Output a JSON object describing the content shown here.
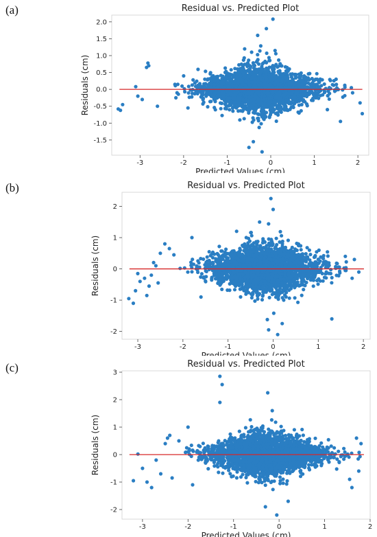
{
  "colors": {
    "points": "#2a7ec3",
    "zero_line": "#d62728",
    "axes": "#444444"
  },
  "panels": [
    {
      "letter": "(a)"
    },
    {
      "letter": "(b)"
    },
    {
      "letter": "(c)"
    }
  ],
  "chart_data": [
    {
      "type": "scatter",
      "title": "Residual vs. Predicted Plot",
      "xlabel": "Predicted Values (cm)",
      "ylabel": "Residuals (cm)",
      "xlim": [
        -3.65,
        2.25
      ],
      "ylim": [
        -1.95,
        2.2
      ],
      "xticks": [
        -3,
        -2,
        -1,
        0,
        1,
        2
      ],
      "yticks": [
        -1.5,
        -1.0,
        -0.5,
        0.0,
        0.5,
        1.0,
        1.5,
        2.0
      ],
      "ytick_labels": [
        "-1.5",
        "-1.0",
        "-0.5",
        "0.0",
        "0.5",
        "1.0",
        "1.5",
        "2.0"
      ],
      "reference_line_y": 0,
      "grid": false,
      "cloud": {
        "x_center": -0.25,
        "x_spread": 0.65,
        "y_spread": 0.36,
        "x_min": -2.2,
        "x_max": 1.9
      },
      "points": [
        [
          -3.5,
          -0.58
        ],
        [
          -3.45,
          -0.62
        ],
        [
          -3.4,
          -0.45
        ],
        [
          -3.1,
          0.08
        ],
        [
          -3.05,
          -0.2
        ],
        [
          -2.95,
          -0.3
        ],
        [
          -2.85,
          0.65
        ],
        [
          -2.82,
          0.78
        ],
        [
          -2.8,
          0.7
        ],
        [
          -2.6,
          -0.5
        ],
        [
          -2.2,
          0.15
        ],
        [
          -2.15,
          -0.1
        ],
        [
          -0.5,
          -1.72
        ],
        [
          -0.3,
          1.6
        ],
        [
          -0.1,
          1.8
        ],
        [
          0.05,
          2.08
        ],
        [
          0.1,
          1.15
        ],
        [
          -0.6,
          1.2
        ],
        [
          -0.2,
          -1.85
        ],
        [
          -0.4,
          -1.55
        ],
        [
          1.6,
          -0.95
        ],
        [
          1.7,
          0.12
        ],
        [
          1.85,
          0.05
        ],
        [
          2.05,
          -0.4
        ],
        [
          2.1,
          -0.72
        ],
        [
          1.3,
          -0.6
        ],
        [
          1.5,
          0.3
        ],
        [
          -1.9,
          -0.55
        ],
        [
          -2.0,
          0.4
        ]
      ]
    },
    {
      "type": "scatter",
      "title": "Residual vs. Predicted Plot",
      "xlabel": "Predicted Values (cm)",
      "ylabel": "Residuals (cm)",
      "xlim": [
        -3.35,
        2.15
      ],
      "ylim": [
        -2.25,
        2.45
      ],
      "xticks": [
        -3,
        -2,
        -1,
        0,
        1,
        2
      ],
      "yticks": [
        -2,
        -1,
        0,
        1,
        2
      ],
      "ytick_labels": [
        "-2",
        "-1",
        "0",
        "1",
        "2"
      ],
      "reference_line_y": 0,
      "grid": false,
      "cloud": {
        "x_center": -0.2,
        "x_spread": 0.6,
        "y_spread": 0.42,
        "x_min": -2.1,
        "x_max": 1.9
      },
      "points": [
        [
          -3.2,
          -0.95
        ],
        [
          -3.1,
          -1.1
        ],
        [
          -3.05,
          -0.7
        ],
        [
          -2.95,
          -0.4
        ],
        [
          -2.85,
          -0.3
        ],
        [
          -2.8,
          -0.85
        ],
        [
          -2.7,
          -0.2
        ],
        [
          -2.6,
          0.1
        ],
        [
          -2.5,
          0.5
        ],
        [
          -2.4,
          0.8
        ],
        [
          -2.3,
          0.65
        ],
        [
          -2.2,
          0.45
        ],
        [
          -2.75,
          -0.55
        ],
        [
          -2.65,
          0.2
        ],
        [
          -2.55,
          -0.45
        ],
        [
          -3.0,
          -0.15
        ],
        [
          -0.05,
          2.25
        ],
        [
          0.0,
          1.9
        ],
        [
          -0.3,
          1.5
        ],
        [
          0.1,
          -2.1
        ],
        [
          -0.1,
          -1.95
        ],
        [
          0.2,
          -1.75
        ],
        [
          1.3,
          -1.6
        ],
        [
          1.6,
          0.4
        ],
        [
          1.8,
          0.3
        ],
        [
          1.9,
          -0.1
        ],
        [
          1.75,
          -0.3
        ],
        [
          -1.8,
          1.0
        ],
        [
          -1.6,
          -0.9
        ]
      ]
    },
    {
      "type": "scatter",
      "title": "Residual vs. Predicted Plot",
      "xlabel": "Predicted Values (cm)",
      "ylabel": "Residuals (cm)",
      "xlim": [
        -3.45,
        2.0
      ],
      "ylim": [
        -2.35,
        3.05
      ],
      "xticks": [
        -3,
        -2,
        -1,
        0,
        1,
        2
      ],
      "yticks": [
        -2,
        -1,
        0,
        1,
        2,
        3
      ],
      "ytick_labels": [
        "-2",
        "-1",
        "0",
        "1",
        "2",
        "3"
      ],
      "reference_line_y": 0,
      "grid": false,
      "cloud": {
        "x_center": -0.3,
        "x_spread": 0.62,
        "y_spread": 0.42,
        "x_min": -2.1,
        "x_max": 1.8
      },
      "points": [
        [
          -3.2,
          -0.95
        ],
        [
          -3.1,
          0.02
        ],
        [
          -3.0,
          -0.5
        ],
        [
          -2.9,
          -1.0
        ],
        [
          -2.8,
          -1.2
        ],
        [
          -2.7,
          -0.2
        ],
        [
          -2.5,
          0.4
        ],
        [
          -2.45,
          0.6
        ],
        [
          -2.4,
          0.7
        ],
        [
          -2.2,
          0.5
        ],
        [
          -2.6,
          -0.7
        ],
        [
          -2.35,
          -0.85
        ],
        [
          -1.3,
          2.85
        ],
        [
          -1.25,
          2.55
        ],
        [
          -1.3,
          1.9
        ],
        [
          -0.25,
          2.25
        ],
        [
          -0.15,
          1.6
        ],
        [
          -0.05,
          -2.2
        ],
        [
          -0.3,
          -1.9
        ],
        [
          0.2,
          -1.7
        ],
        [
          1.55,
          -0.9
        ],
        [
          1.6,
          -1.2
        ],
        [
          1.7,
          0.6
        ],
        [
          1.8,
          0.4
        ],
        [
          1.75,
          -0.6
        ],
        [
          -1.9,
          -1.1
        ],
        [
          -2.0,
          1.0
        ]
      ]
    }
  ]
}
